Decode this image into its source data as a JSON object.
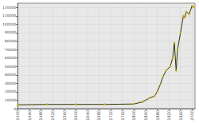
{
  "chart_data": {
    "type": "line",
    "x": [
      1400,
      1500,
      1600,
      1700,
      1800,
      1830,
      1850,
      1871,
      1880,
      1890,
      1900,
      1910,
      1925,
      1933,
      1939,
      1945,
      1950,
      1960,
      1970,
      1975,
      1980,
      1990,
      2000,
      2005
    ],
    "values": [
      4500,
      5000,
      5000,
      5000,
      5500,
      8000,
      12000,
      15000,
      20000,
      28000,
      38000,
      45000,
      50000,
      60000,
      78000,
      45000,
      70000,
      90000,
      110000,
      108000,
      115000,
      112000,
      122000,
      120000
    ],
    "color": "#333300",
    "marker": "circle",
    "xlim": [
      1400,
      2010
    ],
    "xticks": [
      1400,
      1440,
      1480,
      1520,
      1560,
      1600,
      1640,
      1680,
      1720,
      1760,
      1800,
      1840,
      1880,
      1920,
      1960,
      2000
    ],
    "ylim": [
      0,
      125000
    ],
    "yticks": [
      0,
      10000,
      20000,
      30000,
      40000,
      50000,
      60000,
      70000,
      80000,
      90000,
      100000,
      110000,
      120000
    ],
    "grid": true
  }
}
